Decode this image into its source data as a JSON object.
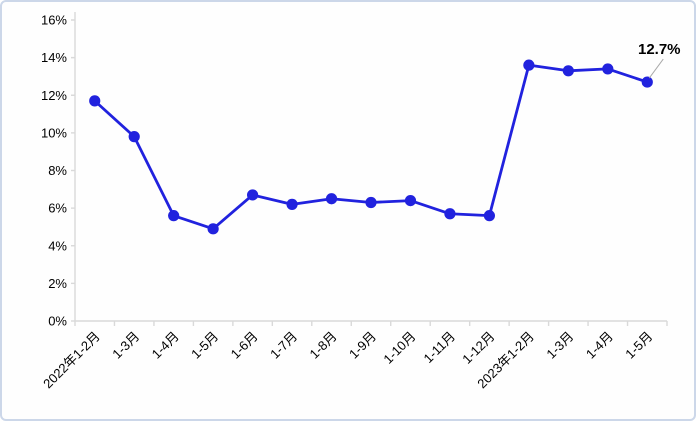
{
  "chart_data": {
    "type": "line",
    "title": "",
    "xlabel": "",
    "ylabel": "",
    "categories": [
      "2022年1-2月",
      "1-3月",
      "1-4月",
      "1-5月",
      "1-6月",
      "1-7月",
      "1-8月",
      "1-9月",
      "1-10月",
      "1-11月",
      "1-12月",
      "2023年1-2月",
      "1-3月",
      "1-4月",
      "1-5月"
    ],
    "values": [
      11.7,
      9.8,
      5.6,
      4.9,
      6.7,
      6.2,
      6.5,
      6.3,
      6.4,
      5.7,
      5.6,
      13.6,
      13.3,
      13.4,
      12.7
    ],
    "ylim": [
      0,
      16
    ],
    "y_tick_step": 2,
    "y_tick_suffix": "%",
    "grid": false,
    "legend_position": "none",
    "annotation": {
      "text": "12.7%",
      "point_index": 14
    },
    "colors": {
      "line": "#2122DE",
      "marker": "#2122DE",
      "axis": "#D9D9D9",
      "tick": "#D9D9D9",
      "text": "#000000",
      "leader_line": "#A9A9A9",
      "card_border": "#CCD7E9",
      "background": "#FEFEFE"
    }
  }
}
